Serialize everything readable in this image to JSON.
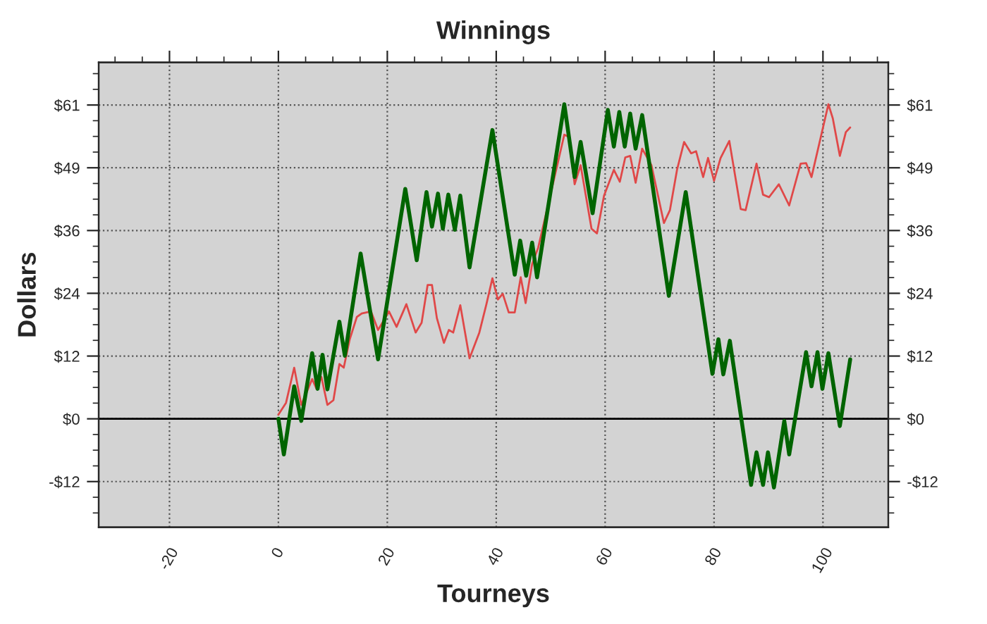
{
  "chart_data": {
    "type": "line",
    "title": "Winnings",
    "xlabel": "Tourneys",
    "ylabel": "Dollars",
    "xlim": [
      -33,
      112
    ],
    "xticks": [
      -20,
      0,
      20,
      40,
      60,
      80,
      100
    ],
    "ylim": [
      -21,
      69
    ],
    "yticks": [
      {
        "value": -12.15,
        "label": "-$12"
      },
      {
        "value": 0,
        "label": "$0"
      },
      {
        "value": 12.15,
        "label": "$12"
      },
      {
        "value": 24.3,
        "label": "$24"
      },
      {
        "value": 36.45,
        "label": "$36"
      },
      {
        "value": 48.6,
        "label": "$49"
      },
      {
        "value": 60.75,
        "label": "$61"
      }
    ],
    "y2lim": [
      -21,
      69
    ],
    "y2ticks": [
      {
        "value": -12.15,
        "label": "-$12"
      },
      {
        "value": 0,
        "label": "$0"
      },
      {
        "value": 12.15,
        "label": "$12"
      },
      {
        "value": 24.3,
        "label": "$24"
      },
      {
        "value": 36.45,
        "label": "$36"
      },
      {
        "value": 48.6,
        "label": "$49"
      },
      {
        "value": 60.75,
        "label": "$61"
      }
    ],
    "grid": true,
    "line_style": "solid",
    "marker": "none",
    "ref_lines": [
      {
        "axis": "y",
        "value": 0,
        "color": "#000000"
      }
    ],
    "series": [
      {
        "color": "#e04848",
        "x": [
          0,
          1.4,
          2.9,
          4.2,
          5.3,
          6.2,
          7.0,
          7.9,
          9.0,
          10.1,
          11.2,
          12.0,
          13.1,
          14.4,
          15.3,
          17.0,
          18.3,
          19.1,
          20.3,
          21.7,
          23.5,
          25.2,
          26.3,
          27.4,
          28.2,
          29.1,
          30.4,
          31.3,
          32.1,
          33.4,
          35.1,
          36.9,
          38.2,
          39.3,
          40.3,
          41.2,
          42.3,
          43.4,
          44.5,
          45.4,
          46.6,
          47.7,
          52.5,
          53.3,
          54.4,
          55.5,
          57.5,
          58.5,
          59.8,
          61.6,
          62.7,
          63.7,
          64.6,
          65.6,
          66.8,
          68.5,
          70.8,
          71.9,
          73.2,
          74.5,
          75.8,
          76.7,
          78.0,
          78.9,
          80.0,
          81.2,
          82.8,
          84.9,
          85.8,
          87.8,
          89.0,
          90.1,
          91.9,
          93.8,
          95.9,
          96.9,
          97.9,
          101.0,
          101.8,
          103.1,
          104.2,
          105.0
        ],
        "values": [
          0.8,
          3.1,
          9.9,
          2.7,
          5.4,
          7.7,
          5.8,
          8.1,
          2.7,
          3.6,
          10.6,
          9.9,
          15.4,
          19.7,
          20.4,
          20.8,
          17.2,
          18.6,
          20.8,
          17.8,
          22.2,
          16.7,
          18.6,
          25.9,
          25.9,
          19.5,
          14.7,
          17.2,
          16.7,
          22.0,
          11.7,
          16.7,
          22.2,
          27.2,
          23.1,
          24.2,
          20.6,
          20.6,
          27.4,
          22.4,
          30.0,
          33.1,
          55.0,
          54.6,
          45.4,
          49.1,
          36.8,
          35.9,
          43.2,
          48.2,
          45.9,
          50.6,
          50.9,
          45.7,
          52.3,
          49.1,
          37.9,
          40.4,
          48.2,
          53.6,
          51.4,
          51.8,
          46.8,
          50.5,
          46.1,
          50.5,
          53.8,
          40.6,
          40.4,
          49.4,
          43.4,
          42.9,
          45.4,
          41.3,
          49.4,
          49.5,
          46.8,
          60.9,
          58.2,
          50.9,
          55.5,
          56.4
        ]
      },
      {
        "color": "#006400",
        "x": [
          0,
          1.0,
          2.9,
          4.2,
          6.2,
          7.2,
          8.1,
          9.0,
          11.2,
          12.2,
          15.1,
          18.3,
          23.3,
          25.4,
          27.2,
          28.2,
          29.3,
          30.2,
          31.2,
          32.4,
          33.4,
          35.1,
          39.3,
          43.4,
          44.4,
          45.5,
          46.6,
          47.5,
          52.5,
          54.4,
          55.5,
          57.7,
          60.5,
          61.6,
          62.6,
          63.6,
          64.6,
          65.6,
          66.8,
          71.7,
          74.8,
          79.7,
          80.8,
          81.7,
          82.9,
          86.8,
          87.8,
          89.0,
          89.9,
          91.0,
          92.9,
          93.8,
          96.9,
          97.9,
          99.0,
          99.9,
          101.0,
          103.1,
          105.0
        ],
        "values": [
          0,
          -6.9,
          6.3,
          -0.4,
          12.7,
          5.8,
          12.4,
          5.7,
          18.8,
          12.2,
          32.0,
          11.5,
          44.5,
          30.7,
          43.9,
          37.2,
          43.6,
          36.8,
          43.4,
          36.6,
          43.2,
          29.3,
          55.9,
          27.9,
          34.5,
          27.7,
          34.1,
          27.4,
          60.9,
          46.8,
          53.6,
          39.8,
          59.8,
          52.7,
          59.4,
          52.7,
          59.1,
          52.3,
          58.8,
          23.8,
          43.9,
          8.7,
          15.4,
          8.6,
          15.1,
          -12.8,
          -6.5,
          -12.8,
          -6.5,
          -13.3,
          -0.4,
          -6.9,
          12.9,
          6.3,
          12.9,
          5.8,
          12.7,
          -1.4,
          11.5
        ]
      }
    ]
  }
}
